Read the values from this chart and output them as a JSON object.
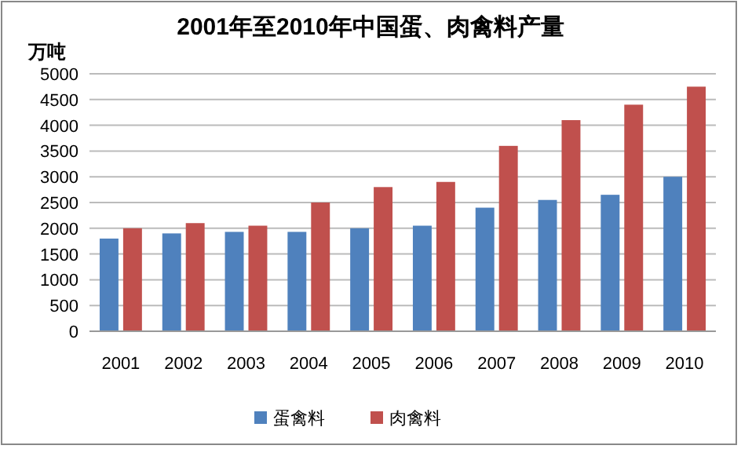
{
  "chart_data": {
    "type": "bar",
    "title": "2001年至2010年中国蛋、肉禽料产量",
    "ylabel": "万吨",
    "categories": [
      "2001",
      "2002",
      "2003",
      "2004",
      "2005",
      "2006",
      "2007",
      "2008",
      "2009",
      "2010"
    ],
    "series": [
      {
        "name": "蛋禽料",
        "color": "#4f81bd",
        "values": [
          1800,
          1900,
          1930,
          1930,
          2000,
          2050,
          2400,
          2550,
          2650,
          3000
        ]
      },
      {
        "name": "肉禽料",
        "color": "#c0504d",
        "values": [
          2000,
          2100,
          2050,
          2500,
          2800,
          2900,
          3600,
          4100,
          4400,
          4750
        ]
      }
    ],
    "ylim": [
      0,
      5000
    ],
    "yticks": [
      0,
      500,
      1000,
      1500,
      2000,
      2500,
      3000,
      3500,
      4000,
      4500,
      5000
    ],
    "grid": "y",
    "legend": "bottom"
  }
}
